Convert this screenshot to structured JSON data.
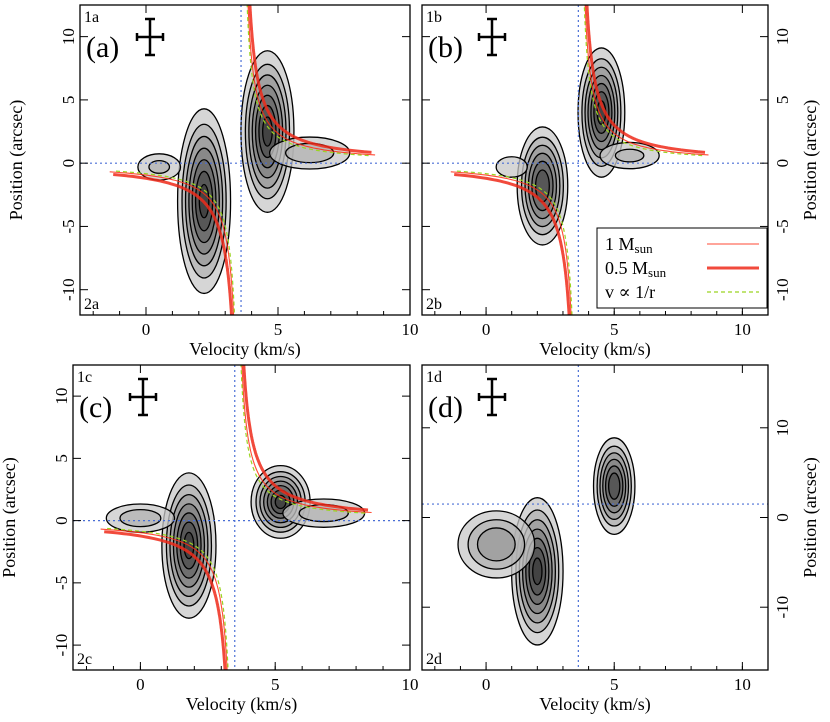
{
  "chart_data": [
    {
      "panel": "a",
      "type": "contour",
      "panel_label": "(a)",
      "corner_top": "1a",
      "corner_bottom": "2a",
      "xlabel": "Velocity (km/s)",
      "ylabel": "Position (arcsec)",
      "ylabel_side": "left",
      "xlim": [
        -2.5,
        10
      ],
      "ylim": [
        -12,
        12.5
      ],
      "xticks": [
        0,
        5,
        10
      ],
      "yticks": [
        10,
        5,
        0,
        -5,
        -10
      ],
      "ref_velocity": 3.6,
      "ref_position": 0,
      "models": [
        "1 Msun",
        "0.5 Msun",
        "v ∝ 1/r"
      ],
      "blobs": [
        {
          "v": 2.2,
          "p": -3.0,
          "sv": 0.55,
          "sp": 4.0,
          "peak": 0.95
        },
        {
          "v": 4.6,
          "p": 2.5,
          "sv": 0.55,
          "sp": 3.5,
          "peak": 0.95
        },
        {
          "v": 0.5,
          "p": -0.3,
          "sv": 0.7,
          "sp": 0.9,
          "peak": 0.35
        },
        {
          "v": 6.2,
          "p": 0.8,
          "sv": 1.2,
          "sp": 1.0,
          "peak": 0.4
        }
      ]
    },
    {
      "panel": "b",
      "type": "contour",
      "panel_label": "(b)",
      "corner_top": "1b",
      "corner_bottom": "2b",
      "xlabel": "Velocity (km/s)",
      "ylabel": "Position (arcsec)",
      "ylabel_side": "right",
      "xlim": [
        -2.5,
        11
      ],
      "ylim": [
        -12,
        12.5
      ],
      "xticks": [
        0,
        5,
        10
      ],
      "yticks": [
        10,
        5,
        0,
        -5,
        -10
      ],
      "ref_velocity": 3.6,
      "ref_position": 0,
      "models": [
        "1 Msun",
        "0.5 Msun",
        "v ∝ 1/r"
      ],
      "blobs": [
        {
          "v": 2.2,
          "p": -1.8,
          "sv": 0.55,
          "sp": 2.6,
          "peak": 0.9
        },
        {
          "v": 4.5,
          "p": 4.0,
          "sv": 0.5,
          "sp": 2.8,
          "peak": 0.95
        },
        {
          "v": 5.6,
          "p": 0.6,
          "sv": 1.0,
          "sp": 0.9,
          "peak": 0.35
        },
        {
          "v": 1.0,
          "p": -0.3,
          "sv": 0.6,
          "sp": 0.8,
          "peak": 0.3
        }
      ]
    },
    {
      "panel": "c",
      "type": "contour",
      "panel_label": "(c)",
      "corner_top": "1c",
      "corner_bottom": "2c",
      "xlabel": "Velocity (km/s)",
      "ylabel": "Position (arcsec)",
      "ylabel_side": "left",
      "xlim": [
        -2.5,
        10
      ],
      "ylim": [
        -12,
        12.5
      ],
      "xticks": [
        0,
        5,
        10
      ],
      "yticks": [
        10,
        5,
        0,
        -5,
        -10
      ],
      "ref_velocity": 3.5,
      "ref_position": 0,
      "models": [
        "1 Msun",
        "0.5 Msun",
        "v ∝ 1/r"
      ],
      "blobs": [
        {
          "v": 1.8,
          "p": -2.0,
          "sv": 0.55,
          "sp": 3.2,
          "peak": 0.95
        },
        {
          "v": 5.2,
          "p": 1.5,
          "sv": 0.6,
          "sp": 1.6,
          "peak": 0.95
        },
        {
          "v": 0.0,
          "p": 0.2,
          "sv": 1.0,
          "sp": 0.9,
          "peak": 0.4
        },
        {
          "v": 6.8,
          "p": 0.6,
          "sv": 1.2,
          "sp": 0.9,
          "peak": 0.4
        }
      ]
    },
    {
      "panel": "d",
      "type": "contour",
      "panel_label": "(d)",
      "corner_top": "1d",
      "corner_bottom": "2d",
      "xlabel": "Velocity (km/s)",
      "ylabel": "Position (arcsec)",
      "ylabel_side": "right",
      "xlim": [
        -2.5,
        11
      ],
      "ylim": [
        -17,
        17
      ],
      "xticks": [
        0,
        5,
        10
      ],
      "yticks": [
        10,
        0,
        -10
      ],
      "ref_velocity": 3.6,
      "ref_position": 1.5,
      "models": [],
      "blobs": [
        {
          "v": 2.0,
          "p": -6.0,
          "sv": 0.55,
          "sp": 4.5,
          "peak": 0.95
        },
        {
          "v": 0.4,
          "p": -3.0,
          "sv": 1.0,
          "sp": 2.5,
          "peak": 0.55
        },
        {
          "v": 5.0,
          "p": 3.5,
          "sv": 0.45,
          "sp": 3.0,
          "peak": 0.9
        }
      ]
    }
  ],
  "legend": {
    "items": [
      {
        "label": "1 M",
        "sub": "sun"
      },
      {
        "label": "0.5 M",
        "sub": "sun"
      },
      {
        "label": "v ∝ 1/r",
        "sub": ""
      }
    ]
  },
  "colors": {
    "model_1msun": "#ff2a10",
    "model_05msun": "#ee2a1a",
    "model_vr": "#9bd420",
    "ref_line": "#4a6fd6"
  }
}
